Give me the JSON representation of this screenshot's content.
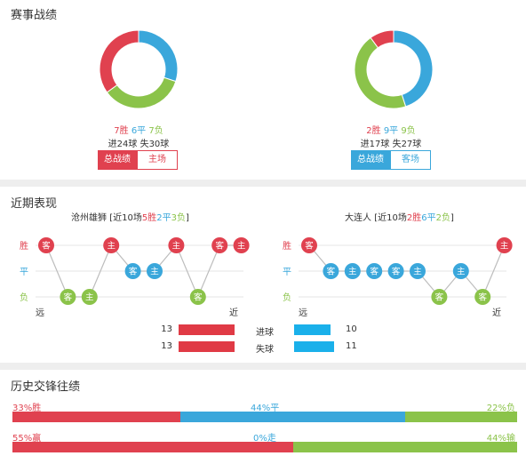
{
  "section1": {
    "title": "赛事战绩",
    "left": {
      "wins": 7,
      "draws": 6,
      "losses": 7,
      "win_label": "7胜",
      "draw_label": "6平",
      "loss_label": "7负",
      "goals_line": "进24球 失30球",
      "btn_total": "总战绩",
      "btn_venue": "主场"
    },
    "right": {
      "wins": 2,
      "draws": 9,
      "losses": 9,
      "win_label": "2胜",
      "draw_label": "9平",
      "loss_label": "9负",
      "goals_line": "进17球 失27球",
      "btn_total": "总战绩",
      "btn_venue": "客场"
    }
  },
  "section2": {
    "title": "近期表现",
    "left": {
      "team": "沧州雄狮",
      "summary_prefix": "[近10场",
      "w": "5胜",
      "d": "2平",
      "l": "3负",
      "summary_suffix": "]",
      "results": [
        "W",
        "L",
        "L",
        "W",
        "D",
        "D",
        "W",
        "L",
        "W",
        "W"
      ],
      "tags": [
        "客",
        "客",
        "主",
        "主",
        "客",
        "主",
        "主",
        "客",
        "客",
        "主"
      ]
    },
    "right": {
      "team": "大连人",
      "summary_prefix": "[近10场",
      "w": "2胜",
      "d": "6平",
      "l": "2负",
      "summary_suffix": "]",
      "results": [
        "W",
        "D",
        "D",
        "D",
        "D",
        "D",
        "L",
        "D",
        "L",
        "W"
      ],
      "tags": [
        "客",
        "客",
        "主",
        "客",
        "客",
        "主",
        "客",
        "主",
        "客",
        "主"
      ]
    },
    "axis": {
      "win": "胜",
      "draw": "平",
      "loss": "负",
      "far": "远",
      "near": "近"
    },
    "stats": {
      "goals_for_label": "进球",
      "goals_against_label": "失球",
      "left_for": 13,
      "left_against": 13,
      "right_for": 10,
      "right_against": 11
    }
  },
  "section3": {
    "title": "历史交锋往绩",
    "row1": {
      "left": "33%胜",
      "mid": "44%平",
      "right": "22%负",
      "pcts": [
        33,
        44,
        22
      ]
    },
    "row2": {
      "left": "55%赢",
      "mid": "0%走",
      "right": "44%输",
      "pcts": [
        55,
        0,
        44
      ]
    }
  },
  "colors": {
    "red": "#e0414f",
    "blue": "#3aa7db",
    "green": "#8bc34a"
  }
}
